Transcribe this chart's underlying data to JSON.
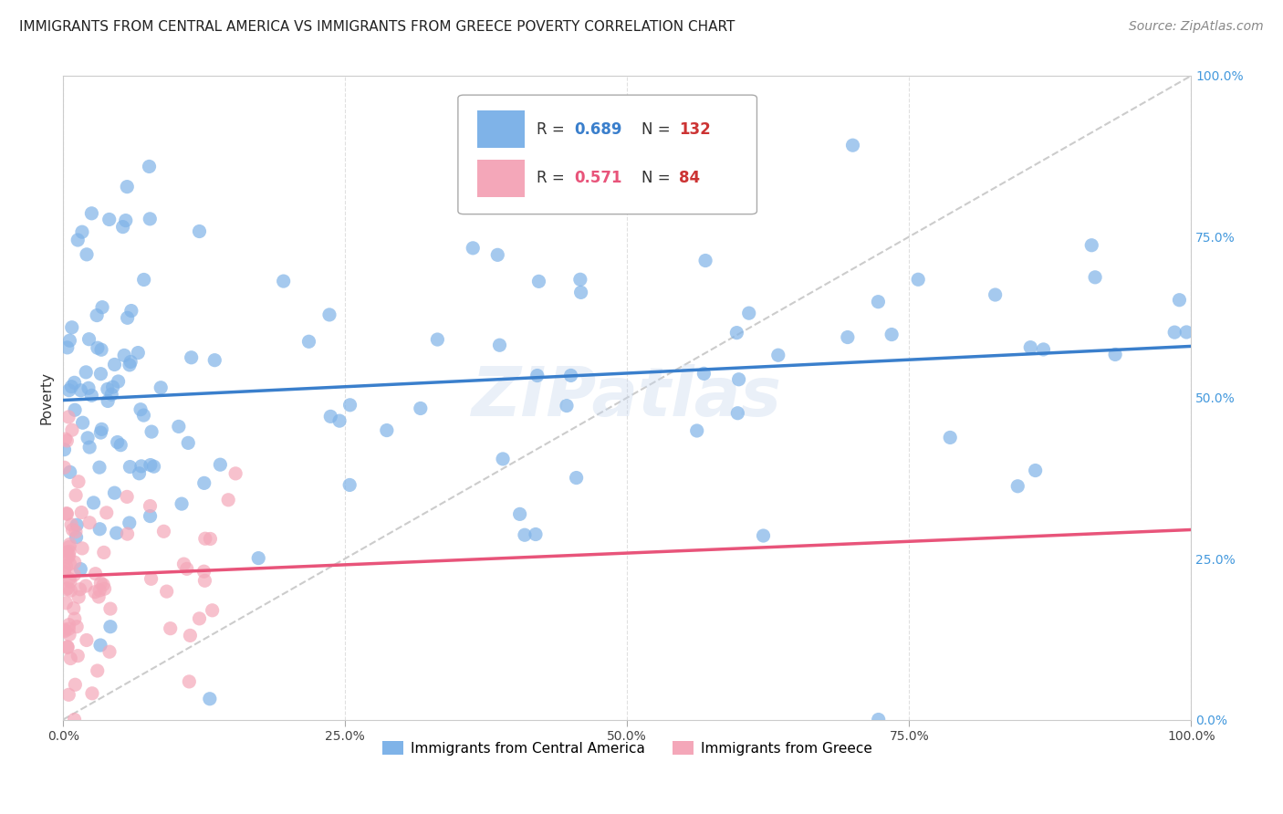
{
  "title": "IMMIGRANTS FROM CENTRAL AMERICA VS IMMIGRANTS FROM GREECE POVERTY CORRELATION CHART",
  "source": "Source: ZipAtlas.com",
  "ylabel": "Poverty",
  "xlim": [
    0,
    1
  ],
  "ylim": [
    0,
    1
  ],
  "xticks": [
    0.0,
    0.25,
    0.5,
    0.75,
    1.0
  ],
  "yticks": [
    0.0,
    0.25,
    0.5,
    0.75,
    1.0
  ],
  "xticklabels": [
    "0.0%",
    "25.0%",
    "50.0%",
    "75.0%",
    "100.0%"
  ],
  "yticklabels_right": [
    "0.0%",
    "25.0%",
    "50.0%",
    "75.0%",
    "100.0%"
  ],
  "blue_color": "#7fb3e8",
  "pink_color": "#f4a7b9",
  "blue_line_color": "#3a7fcc",
  "pink_line_color": "#e8547a",
  "diag_color": "#cccccc",
  "watermark": "ZIPatlas",
  "legend_R1": "0.689",
  "legend_N1": "132",
  "legend_R2": "0.571",
  "legend_N2": "84",
  "legend_label1": "Immigrants from Central America",
  "legend_label2": "Immigrants from Greece",
  "R1_color": "#3a7fcc",
  "R2_color": "#e8547a",
  "N_color": "#cc3333",
  "title_fontsize": 11,
  "axis_label_fontsize": 11,
  "tick_fontsize": 10,
  "source_fontsize": 10
}
